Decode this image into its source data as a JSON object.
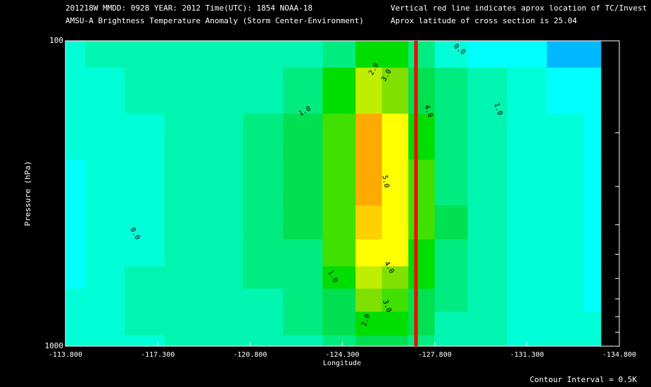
{
  "chart_data": {
    "type": "contour",
    "header_left": [
      "201218W  MMDD: 0928 YEAR: 2012 Time(UTC): 1854 NOAA-18",
      "AMSU-A Brightness Temperature Anomaly (Storm Center-Environment)"
    ],
    "header_right": [
      "Vertical red line indicates aprox location of TC/Invest",
      "Aprox latitude of cross section is 25.04"
    ],
    "footer": "Contour Interval = 0.5K",
    "x_label": "Longitude",
    "y_label": "Pressure (hPa)",
    "xlim": [
      -113.8,
      -134.8
    ],
    "xticks": [
      {
        "value": -113.8,
        "label": "-113.800"
      },
      {
        "value": -117.3,
        "label": "-117.300"
      },
      {
        "value": -120.8,
        "label": "-120.800"
      },
      {
        "value": -124.3,
        "label": "-124.300"
      },
      {
        "value": -127.8,
        "label": "-127.800"
      },
      {
        "value": -131.3,
        "label": "-131.300"
      },
      {
        "value": -134.8,
        "label": "-134.800"
      }
    ],
    "ylim": [
      1000,
      100
    ],
    "yticks": [
      100,
      1000
    ],
    "y_minor_ticks": [
      200,
      300,
      400,
      500,
      600,
      700,
      800,
      900
    ],
    "log_y": true,
    "storm_longitude": -127.09,
    "storm_line_color": "#ff0000",
    "x": [
      -113.8,
      -115.3,
      -116.8,
      -118.3,
      -119.8,
      -121.3,
      -122.8,
      -124.3,
      -125.3,
      -126.3,
      -127.3,
      -128.3,
      -129.8,
      -131.3,
      -132.8,
      -134.1
    ],
    "pressure": [
      100,
      150,
      200,
      300,
      400,
      500,
      600,
      700,
      850,
      1000
    ],
    "z": [
      [
        0.3,
        0.6,
        0.7,
        0.5,
        0.5,
        0.8,
        0.8,
        1.2,
        2.0,
        2.0,
        1.0,
        0.2,
        -0.2,
        -0.4,
        -0.6,
        -1.0
      ],
      [
        0.2,
        0.4,
        0.5,
        0.5,
        0.6,
        0.9,
        1.2,
        2.0,
        3.5,
        3.0,
        1.8,
        1.0,
        0.5,
        0.1,
        -0.2,
        -0.5
      ],
      [
        0.1,
        0.2,
        0.4,
        0.5,
        0.8,
        1.2,
        1.5,
        2.5,
        5.2,
        4.2,
        2.2,
        1.3,
        0.8,
        0.3,
        0.0,
        -0.2
      ],
      [
        -0.1,
        0.1,
        0.3,
        0.6,
        0.9,
        1.2,
        1.6,
        2.8,
        5.0,
        4.4,
        2.5,
        1.4,
        0.9,
        0.4,
        0.1,
        -0.1
      ],
      [
        -0.2,
        0.0,
        0.3,
        0.6,
        0.8,
        1.1,
        1.5,
        2.8,
        4.8,
        4.2,
        2.6,
        1.5,
        0.9,
        0.4,
        0.1,
        -0.1
      ],
      [
        -0.2,
        0.0,
        0.4,
        0.7,
        0.8,
        1.0,
        1.4,
        2.6,
        4.4,
        4.0,
        2.4,
        1.4,
        0.8,
        0.4,
        0.1,
        -0.1
      ],
      [
        -0.1,
        0.1,
        0.5,
        0.8,
        0.9,
        1.0,
        1.2,
        2.2,
        3.6,
        3.4,
        2.0,
        1.2,
        0.7,
        0.3,
        0.0,
        -0.1
      ],
      [
        0.0,
        0.2,
        0.5,
        0.7,
        0.8,
        0.9,
        1.1,
        1.8,
        3.0,
        2.8,
        1.7,
        1.0,
        0.6,
        0.3,
        0.0,
        -0.1
      ],
      [
        0.0,
        0.2,
        0.5,
        0.6,
        0.7,
        0.8,
        1.0,
        1.5,
        2.4,
        2.3,
        1.5,
        0.9,
        0.6,
        0.3,
        0.1,
        0.0
      ],
      [
        0.1,
        0.2,
        0.4,
        0.5,
        0.6,
        0.7,
        0.9,
        1.3,
        1.8,
        1.8,
        1.3,
        0.8,
        0.5,
        0.3,
        0.1,
        0.0
      ]
    ],
    "levels": [
      -0.5,
      0,
      0.5,
      1,
      1.5,
      2,
      2.5,
      3,
      3.5,
      4,
      4.5,
      5
    ],
    "level_colors": [
      "#00b8ff",
      "#00ffff",
      "#00ffd8",
      "#00f5b0",
      "#00ec80",
      "#00e050",
      "#00dd00",
      "#40e000",
      "#80e000",
      "#c0ee00",
      "#ffff00",
      "#ffd000",
      "#ffaa00"
    ],
    "contour_labels": [
      "0.0",
      "2.0",
      "3.0",
      "1.0",
      "4.0",
      "1.0",
      "5.0",
      "0.0",
      "4.0",
      "1.0",
      "3.0",
      "2.0"
    ]
  }
}
